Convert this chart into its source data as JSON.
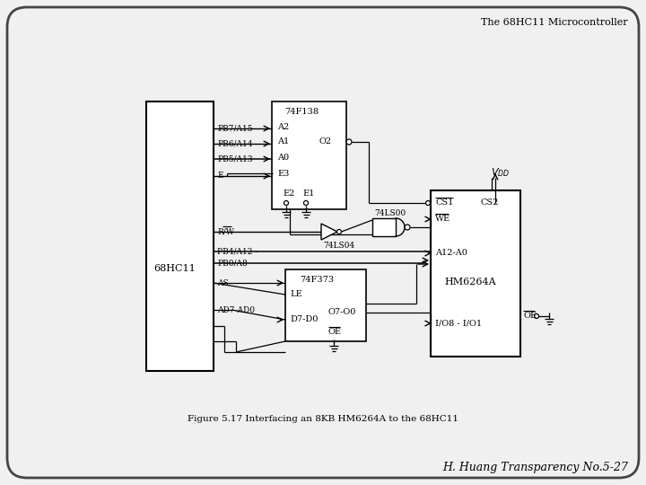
{
  "title_top_right": "The 68HC11 Microcontroller",
  "title_bottom_right": "H. Huang Transparency No.5-27",
  "figure_caption": "Figure 5.17 Interfacing an 8KB HM6264A to the 68HC11",
  "bg_color": "#f0f0f0",
  "text_color": "#000000"
}
